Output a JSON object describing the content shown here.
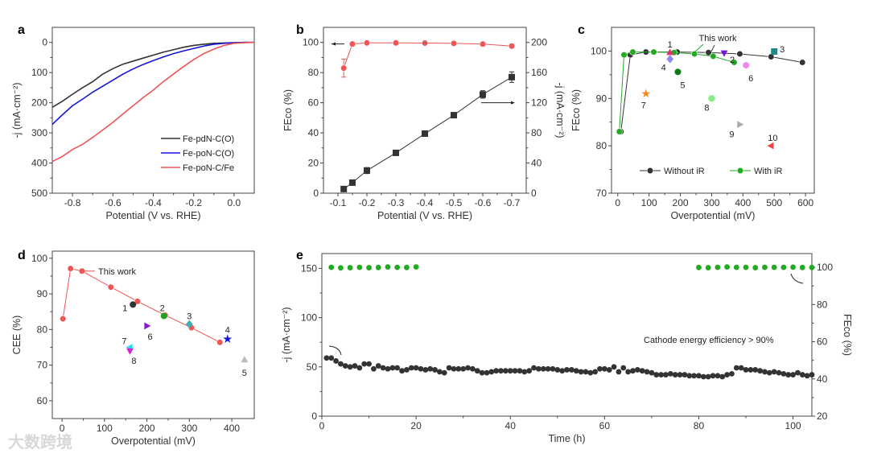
{
  "figure": {
    "panel_labels": [
      "a",
      "b",
      "c",
      "d",
      "e"
    ],
    "watermark": "大数跨境"
  },
  "chart_data": [
    {
      "panel": "a",
      "type": "line",
      "xlabel": "Potential (V vs. RHE)",
      "ylabel": "-j (mA·cm⁻²)",
      "xlim": [
        -0.9,
        0.1
      ],
      "ylim": [
        500,
        -50
      ],
      "xticks": [
        -0.8,
        -0.6,
        -0.4,
        -0.2,
        0.0
      ],
      "xtick_labels": [
        "-0.8",
        "-0.6",
        "-0.4",
        "-0.2",
        "0.0"
      ],
      "yticks": [
        0,
        100,
        200,
        300,
        400,
        500
      ],
      "ytick_labels": [
        "0",
        "100",
        "200",
        "300",
        "400",
        "500"
      ],
      "legend_position": "right-middle",
      "x": [
        -0.9,
        -0.85,
        -0.8,
        -0.75,
        -0.7,
        -0.65,
        -0.6,
        -0.55,
        -0.5,
        -0.45,
        -0.4,
        -0.35,
        -0.3,
        -0.25,
        -0.2,
        -0.15,
        -0.1,
        -0.05,
        0.0,
        0.05,
        0.1
      ],
      "series": [
        {
          "name": "Fe-pdN-C(O)",
          "color": "#333333",
          "y": [
            215,
            195,
            172,
            150,
            130,
            105,
            87,
            72,
            62,
            52,
            42,
            32,
            24,
            16,
            10,
            6,
            3,
            2,
            1,
            0,
            0
          ]
        },
        {
          "name": "Fe-poN-C(O)",
          "color": "#1414d8",
          "y": [
            272,
            240,
            210,
            188,
            165,
            145,
            125,
            105,
            88,
            73,
            60,
            48,
            37,
            28,
            20,
            12,
            6,
            3,
            1,
            0,
            0
          ]
        },
        {
          "name": "Fe-poN-C/Fe",
          "color": "#ee5555",
          "y": [
            395,
            378,
            355,
            338,
            315,
            290,
            265,
            237,
            210,
            183,
            158,
            130,
            105,
            80,
            57,
            37,
            22,
            10,
            3,
            1,
            0
          ]
        }
      ]
    },
    {
      "panel": "b",
      "type": "line",
      "xlabel": "Potential (V vs. RHE)",
      "ylabel": "FEco (%)",
      "y2label": "-j (mA·cm⁻²)",
      "xlim": [
        -0.05,
        -0.75
      ],
      "ylim": [
        0,
        110
      ],
      "y2lim": [
        0,
        220
      ],
      "xticks": [
        -0.1,
        -0.2,
        -0.3,
        -0.4,
        -0.5,
        -0.6,
        -0.7
      ],
      "xtick_labels": [
        "-0.1",
        "-0.2",
        "-0.3",
        "-0.4",
        "-0.5",
        "-0.6",
        "-0.7"
      ],
      "yticks": [
        0,
        20,
        40,
        60,
        80,
        100
      ],
      "ytick_labels": [
        "0",
        "20",
        "40",
        "60",
        "80",
        "100"
      ],
      "y2ticks": [
        0,
        40,
        80,
        120,
        160,
        200
      ],
      "y2tick_labels": [
        "0",
        "40",
        "80",
        "120",
        "160",
        "200"
      ],
      "x": [
        -0.12,
        -0.15,
        -0.2,
        -0.3,
        -0.4,
        -0.5,
        -0.6,
        -0.7
      ],
      "series": [
        {
          "name": "FEco",
          "axis": "left",
          "color": "#ee5555",
          "marker": "circle",
          "y": [
            83,
            99,
            99.7,
            99.7,
            99.6,
            99.4,
            98.9,
            97.6
          ],
          "err": [
            6,
            1,
            0.5,
            0.5,
            0.5,
            0.5,
            0.8,
            1.5
          ]
        },
        {
          "name": "-j",
          "axis": "right",
          "color": "#333333",
          "marker": "square",
          "y": [
            5.5,
            14,
            30,
            53.5,
            79,
            103.5,
            131,
            154
          ],
          "err": [
            2,
            3,
            4,
            1,
            2,
            1.5,
            5,
            7
          ]
        }
      ]
    },
    {
      "panel": "c",
      "type": "scatter",
      "xlabel": "Overpotential (mV)",
      "ylabel": "FEco (%)",
      "xlim": [
        -20,
        628
      ],
      "ylim": [
        70,
        105
      ],
      "xticks": [
        0,
        100,
        200,
        300,
        400,
        500,
        600
      ],
      "xtick_labels": [
        "0",
        "100",
        "200",
        "300",
        "400",
        "500",
        "600"
      ],
      "yticks": [
        70,
        80,
        90,
        100
      ],
      "ytick_labels": [
        "70",
        "80",
        "90",
        "100"
      ],
      "legend_position": "bottom",
      "annotation": "This work",
      "series": [
        {
          "name": "Without iR",
          "color": "#333333",
          "marker": "circle",
          "x": [
            10,
            40,
            90,
            190,
            290,
            390,
            490,
            590
          ],
          "y": [
            83,
            99.2,
            99.8,
            99.8,
            99.7,
            99.4,
            98.8,
            97.6
          ]
        },
        {
          "name": "With iR",
          "color": "#22aa22",
          "marker": "circle",
          "x": [
            5,
            20,
            48,
            115,
            180,
            245,
            305,
            372
          ],
          "y": [
            83,
            99.2,
            99.8,
            99.8,
            99.7,
            99.4,
            98.9,
            97.6
          ]
        }
      ],
      "references": [
        {
          "label": "1",
          "x": 167,
          "y": 99.7,
          "marker": "triangle-up",
          "color": "#e0306a"
        },
        {
          "label": "2",
          "x": 340,
          "y": 99.6,
          "marker": "triangle-down",
          "color": "#7a16d8"
        },
        {
          "label": "3",
          "x": 500,
          "y": 99.9,
          "marker": "square",
          "color": "#1a8a8a"
        },
        {
          "label": "4",
          "x": 167,
          "y": 98.3,
          "marker": "diamond",
          "color": "#8a8aee"
        },
        {
          "label": "5",
          "x": 192,
          "y": 95.6,
          "marker": "circle",
          "color": "#107a10"
        },
        {
          "label": "6",
          "x": 410,
          "y": 97.0,
          "marker": "circle",
          "color": "#ee88ee"
        },
        {
          "label": "7",
          "x": 90,
          "y": 91.0,
          "marker": "star",
          "color": "#f08a20"
        },
        {
          "label": "8",
          "x": 300,
          "y": 90.0,
          "marker": "hexagon",
          "color": "#88ee88"
        },
        {
          "label": "9",
          "x": 390,
          "y": 84.5,
          "marker": "triangle-right",
          "color": "#aaaaaa"
        },
        {
          "label": "10",
          "x": 490,
          "y": 80.0,
          "marker": "triangle-left",
          "color": "#ee4444"
        }
      ]
    },
    {
      "panel": "d",
      "type": "scatter",
      "xlabel": "Overpotential (mV)",
      "ylabel": "CEE (%)",
      "xlim": [
        -23,
        453
      ],
      "ylim": [
        55,
        102
      ],
      "xticks": [
        0,
        100,
        200,
        300,
        400
      ],
      "xtick_labels": [
        "0",
        "100",
        "200",
        "300",
        "400"
      ],
      "yticks": [
        60,
        70,
        80,
        90,
        100
      ],
      "ytick_labels": [
        "60",
        "70",
        "80",
        "90",
        "100"
      ],
      "annotation": "This work",
      "series": [
        {
          "name": "This work",
          "color": "#ee5555",
          "marker": "circle",
          "x": [
            2,
            20,
            47,
            115,
            178,
            243,
            305,
            372
          ],
          "y": [
            83,
            97.1,
            96.4,
            91.9,
            87.9,
            84.0,
            80.5,
            76.4
          ]
        }
      ],
      "references": [
        {
          "label": "1",
          "x": 167,
          "y": 87.0,
          "marker": "circle",
          "color": "#333333"
        },
        {
          "label": "2",
          "x": 240,
          "y": 83.8,
          "marker": "circle",
          "color": "#22a022"
        },
        {
          "label": "3",
          "x": 300,
          "y": 81.5,
          "marker": "diamond",
          "color": "#40b0b0"
        },
        {
          "label": "4",
          "x": 390,
          "y": 77.3,
          "marker": "star",
          "color": "#1414d8"
        },
        {
          "label": "5",
          "x": 430,
          "y": 71.5,
          "marker": "triangle-up",
          "color": "#bbbbbb"
        },
        {
          "label": "6",
          "x": 200,
          "y": 81.0,
          "marker": "triangle-right",
          "color": "#8a16d8"
        },
        {
          "label": "7",
          "x": 160,
          "y": 75.0,
          "marker": "triangle-left",
          "color": "#20e0f0"
        },
        {
          "label": "8",
          "x": 160,
          "y": 74.0,
          "marker": "triangle-down",
          "color": "#e020d0"
        }
      ]
    },
    {
      "panel": "e",
      "type": "scatter",
      "xlabel": "Time (h)",
      "ylabel": "-j (mA·cm⁻²)",
      "y2label": "FEco (%)",
      "xlim": [
        0,
        104
      ],
      "ylim": [
        0,
        165
      ],
      "y2lim": [
        20,
        107.4
      ],
      "xticks": [
        0,
        20,
        40,
        60,
        80,
        100
      ],
      "xtick_labels": [
        "0",
        "20",
        "40",
        "60",
        "80",
        "100"
      ],
      "yticks": [
        0,
        50,
        100,
        150
      ],
      "ytick_labels": [
        "0",
        "50",
        "100",
        "150"
      ],
      "y2ticks": [
        20,
        40,
        60,
        80,
        100
      ],
      "y2tick_labels": [
        "20",
        "40",
        "60",
        "80",
        "100"
      ],
      "annotation": "Cathode energy efficiency > 90%",
      "series": [
        {
          "name": "-j",
          "axis": "left",
          "color": "#333333",
          "marker": "circle",
          "x": [
            1,
            2,
            3,
            4,
            5,
            6,
            7,
            8,
            9,
            10,
            11,
            12,
            13,
            14,
            15,
            16,
            17,
            18,
            19,
            20,
            21,
            22,
            23,
            24,
            25,
            26,
            27,
            28,
            29,
            30,
            31,
            32,
            33,
            34,
            35,
            36,
            37,
            38,
            39,
            40,
            41,
            42,
            43,
            44,
            45,
            46,
            47,
            48,
            49,
            50,
            51,
            52,
            53,
            54,
            55,
            56,
            57,
            58,
            59,
            60,
            61,
            62,
            63,
            64,
            65,
            66,
            67,
            68,
            69,
            70,
            71,
            72,
            73,
            74,
            75,
            76,
            77,
            78,
            79,
            80,
            81,
            82,
            83,
            84,
            85,
            86,
            87,
            88,
            89,
            90,
            91,
            92,
            93,
            94,
            95,
            96,
            97,
            98,
            99,
            100,
            101,
            102,
            103,
            104
          ],
          "y": [
            59,
            59,
            56,
            53,
            51,
            50,
            51,
            49,
            53,
            53,
            48,
            51,
            49,
            48,
            49,
            49,
            46,
            47,
            49,
            49,
            48,
            47,
            48,
            47,
            45,
            44,
            49,
            48,
            48,
            48,
            49,
            48,
            46,
            44,
            44,
            45,
            46,
            46,
            46,
            46,
            46,
            46,
            45,
            46,
            49,
            48,
            48,
            48,
            48,
            47,
            46,
            47,
            47,
            46,
            45,
            45,
            44,
            45,
            48,
            48,
            47,
            50,
            45,
            49,
            45,
            46,
            47,
            46,
            45,
            44,
            42,
            42,
            42,
            43,
            42,
            42,
            42,
            41,
            41,
            41,
            40,
            40,
            41,
            41,
            40,
            42,
            43,
            49,
            49,
            47,
            47,
            47,
            46,
            45,
            44,
            45,
            44,
            43,
            42,
            42,
            44,
            42,
            41,
            42
          ]
        },
        {
          "name": "FEco",
          "axis": "right",
          "color": "#22aa22",
          "marker": "circle",
          "x": [
            2,
            4,
            6,
            8,
            10,
            12,
            14,
            16,
            18,
            20,
            80,
            82,
            84,
            86,
            88,
            90,
            92,
            94,
            96,
            98,
            100,
            102,
            104
          ],
          "y": [
            100,
            99.7,
            99.8,
            100,
            99.8,
            99.9,
            100.2,
            100,
            99.9,
            100.2,
            99.9,
            99.8,
            100,
            100.2,
            100,
            100,
            99.8,
            100,
            100,
            100,
            100.1,
            99.9,
            99.9
          ]
        }
      ]
    }
  ]
}
